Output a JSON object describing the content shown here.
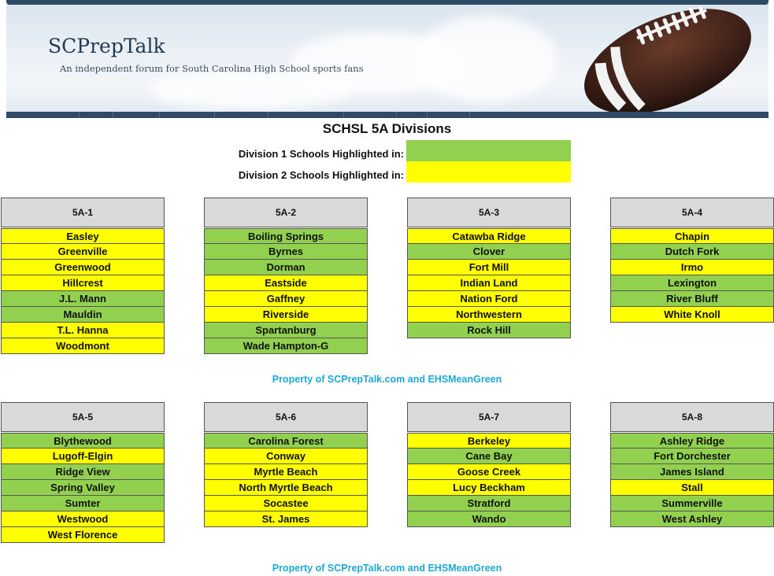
{
  "banner": {
    "brand": "SCPrepTalk",
    "tagline": "An independent forum for South Carolina High School sports fans"
  },
  "page_title": "SCHSL 5A Divisions",
  "legend": {
    "division1_label": "Division 1 Schools Highlighted in:",
    "division1_color": "#92d050",
    "division2_label": "Division 2 Schools Highlighted in:",
    "division2_color": "#ffff00"
  },
  "colors": {
    "d1": "#92d050",
    "d2": "#ffff00"
  },
  "regions": [
    {
      "name": "5A-1",
      "schools": [
        {
          "name": "Easley",
          "div": 2
        },
        {
          "name": "Greenville",
          "div": 2
        },
        {
          "name": "Greenwood",
          "div": 2
        },
        {
          "name": "Hillcrest",
          "div": 2
        },
        {
          "name": "J.L. Mann",
          "div": 1
        },
        {
          "name": "Mauldin",
          "div": 1
        },
        {
          "name": "T.L. Hanna",
          "div": 2
        },
        {
          "name": "Woodmont",
          "div": 2
        }
      ]
    },
    {
      "name": "5A-2",
      "schools": [
        {
          "name": "Boiling Springs",
          "div": 1
        },
        {
          "name": "Byrnes",
          "div": 1
        },
        {
          "name": "Dorman",
          "div": 1
        },
        {
          "name": "Eastside",
          "div": 2
        },
        {
          "name": "Gaffney",
          "div": 2
        },
        {
          "name": "Riverside",
          "div": 2
        },
        {
          "name": "Spartanburg",
          "div": 1
        },
        {
          "name": "Wade Hampton-G",
          "div": 1
        }
      ]
    },
    {
      "name": "5A-3",
      "schools": [
        {
          "name": "Catawba Ridge",
          "div": 2
        },
        {
          "name": "Clover",
          "div": 1
        },
        {
          "name": "Fort Mill",
          "div": 2
        },
        {
          "name": "Indian Land",
          "div": 2
        },
        {
          "name": "Nation Ford",
          "div": 2
        },
        {
          "name": "Northwestern",
          "div": 2
        },
        {
          "name": "Rock Hill",
          "div": 1
        }
      ]
    },
    {
      "name": "5A-4",
      "schools": [
        {
          "name": "Chapin",
          "div": 2
        },
        {
          "name": "Dutch Fork",
          "div": 1
        },
        {
          "name": "Irmo",
          "div": 2
        },
        {
          "name": "Lexington",
          "div": 1
        },
        {
          "name": "River Bluff",
          "div": 1
        },
        {
          "name": "White Knoll",
          "div": 2
        }
      ]
    },
    {
      "name": "5A-5",
      "schools": [
        {
          "name": "Blythewood",
          "div": 1
        },
        {
          "name": "Lugoff-Elgin",
          "div": 2
        },
        {
          "name": "Ridge View",
          "div": 1
        },
        {
          "name": "Spring Valley",
          "div": 1
        },
        {
          "name": "Sumter",
          "div": 1
        },
        {
          "name": "Westwood",
          "div": 2
        },
        {
          "name": "West Florence",
          "div": 2
        }
      ]
    },
    {
      "name": "5A-6",
      "schools": [
        {
          "name": "Carolina Forest",
          "div": 1
        },
        {
          "name": "Conway",
          "div": 2
        },
        {
          "name": "Myrtle Beach",
          "div": 2
        },
        {
          "name": "North Myrtle Beach",
          "div": 2
        },
        {
          "name": "Socastee",
          "div": 2
        },
        {
          "name": "St. James",
          "div": 2
        }
      ]
    },
    {
      "name": "5A-7",
      "schools": [
        {
          "name": "Berkeley",
          "div": 2
        },
        {
          "name": "Cane Bay",
          "div": 1
        },
        {
          "name": "Goose Creek",
          "div": 2
        },
        {
          "name": "Lucy Beckham",
          "div": 2
        },
        {
          "name": "Stratford",
          "div": 1
        },
        {
          "name": "Wando",
          "div": 1
        }
      ]
    },
    {
      "name": "5A-8",
      "schools": [
        {
          "name": "Ashley Ridge",
          "div": 1
        },
        {
          "name": "Fort Dorchester",
          "div": 1
        },
        {
          "name": "James Island",
          "div": 1
        },
        {
          "name": "Stall",
          "div": 2
        },
        {
          "name": "Summerville",
          "div": 1
        },
        {
          "name": "West Ashley",
          "div": 1
        }
      ]
    }
  ],
  "credits": [
    "Property of SCPrepTalk.com and EHSMeanGreen",
    "Property of SCPrepTalk.com and EHSMeanGreen"
  ]
}
